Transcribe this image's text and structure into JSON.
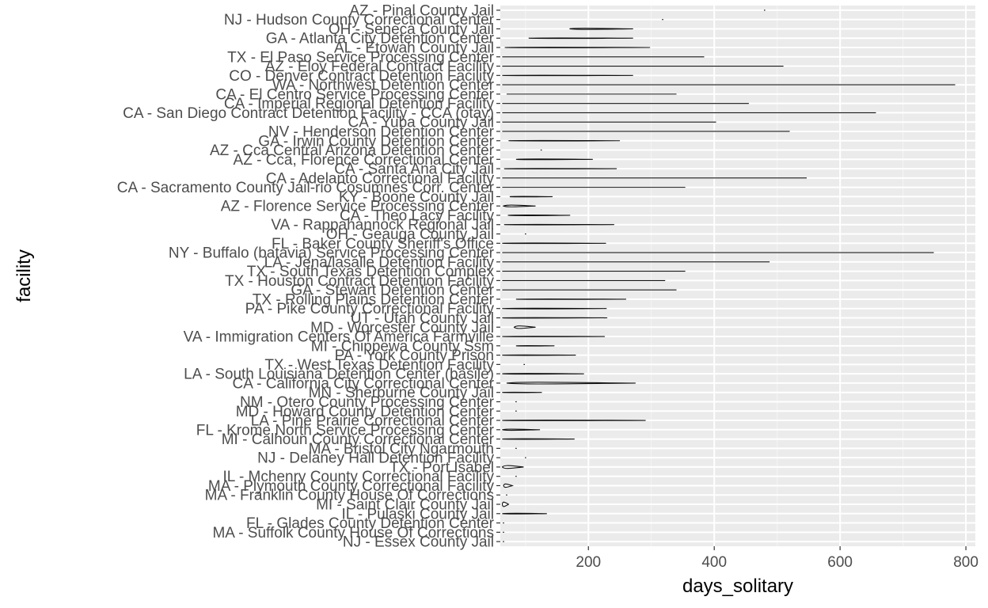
{
  "chart_data": {
    "type": "violin",
    "xlabel": "days_solitary",
    "ylabel": "facility",
    "xlim": [
      60,
      815
    ],
    "xticks": [
      200,
      400,
      600,
      800
    ],
    "grid": true,
    "legend": "none",
    "colors": {
      "panel": "#ebebeb",
      "grid_major": "#ffffff",
      "grid_minor": "#f5f5f5",
      "violin": "#111111",
      "text": "#4d4d4d"
    },
    "facilities": [
      {
        "name": "AZ - Pinal County Jail",
        "min": 480,
        "max": 480,
        "width": 0.05
      },
      {
        "name": "NJ - Hudson County Correctional Center",
        "min": 318,
        "max": 318,
        "width": 0.05
      },
      {
        "name": "OH - Seneca County Jail",
        "min": 170,
        "max": 271,
        "width": 0.2
      },
      {
        "name": "GA - Atlanta City Detention Center",
        "min": 105,
        "max": 271,
        "width": 0.12
      },
      {
        "name": "AL - Etowah County Jail",
        "min": 67,
        "max": 298,
        "width": 0.08
      },
      {
        "name": "TX - El Paso Service Processing Center",
        "min": 63,
        "max": 384,
        "width": 0.08
      },
      {
        "name": "AZ - Eloy Federal Contract Facility",
        "min": 63,
        "max": 510,
        "width": 0.08
      },
      {
        "name": "CO - Denver Contract Detention Facility",
        "min": 63,
        "max": 271,
        "width": 0.08
      },
      {
        "name": "WA - Northwest Detention Center",
        "min": 63,
        "max": 783,
        "width": 0.08
      },
      {
        "name": "CA - El Centro Service Processing Center",
        "min": 70,
        "max": 340,
        "width": 0.08
      },
      {
        "name": "CA - Imperial Regional Detention Facility",
        "min": 63,
        "max": 455,
        "width": 0.08
      },
      {
        "name": "CA - San Diego Contract Detention Facility - CCA (otay)",
        "min": 63,
        "max": 657,
        "width": 0.08
      },
      {
        "name": "CA - Yuba County Jail",
        "min": 63,
        "max": 403,
        "width": 0.1
      },
      {
        "name": "NV - Henderson Detention Center",
        "min": 63,
        "max": 520,
        "width": 0.08
      },
      {
        "name": "GA - Irwin County Detention Center",
        "min": 73,
        "max": 250,
        "width": 0.08
      },
      {
        "name": "AZ - Cca Central Arizona Detention Center",
        "min": 125,
        "max": 125,
        "width": 0.05
      },
      {
        "name": "AZ - Cca, Florence Correctional Center",
        "min": 85,
        "max": 207,
        "width": 0.15
      },
      {
        "name": "CA - Santa Ana City Jail",
        "min": 66,
        "max": 245,
        "width": 0.08
      },
      {
        "name": "CA - Adelanto Correctional Facility",
        "min": 63,
        "max": 547,
        "width": 0.08
      },
      {
        "name": "CA - Sacramento County Jail-rio Cosumnes Corr. Center",
        "min": 63,
        "max": 354,
        "width": 0.08
      },
      {
        "name": "KY - Boone County Jail",
        "min": 75,
        "max": 143,
        "width": 0.1
      },
      {
        "name": "AZ - Florence Service Processing Center",
        "min": 65,
        "max": 116,
        "width": 0.3
      },
      {
        "name": "CA - Theo Lacy Facility",
        "min": 72,
        "max": 171,
        "width": 0.15
      },
      {
        "name": "VA - Rappahannock Regional Jail",
        "min": 66,
        "max": 241,
        "width": 0.08
      },
      {
        "name": "OH - Geauga County Jail",
        "min": 100,
        "max": 100,
        "width": 0.05
      },
      {
        "name": "FL - Baker County Sheriff's Office",
        "min": 63,
        "max": 228,
        "width": 0.1
      },
      {
        "name": "NY - Buffalo (batavia) Service Processing Center",
        "min": 63,
        "max": 749,
        "width": 0.1
      },
      {
        "name": "LA - Jena/lasalle Detention Facility",
        "min": 63,
        "max": 488,
        "width": 0.12
      },
      {
        "name": "TX - South Texas Detention Complex",
        "min": 63,
        "max": 354,
        "width": 0.08
      },
      {
        "name": "TX - Houston Contract Detention Facility",
        "min": 63,
        "max": 322,
        "width": 0.08
      },
      {
        "name": "GA - Stewart Detention Center",
        "min": 63,
        "max": 340,
        "width": 0.08
      },
      {
        "name": "TX - Rolling Plains Detention Center",
        "min": 85,
        "max": 260,
        "width": 0.08
      },
      {
        "name": "PA - Pike County Correctional Facility",
        "min": 63,
        "max": 229,
        "width": 0.15
      },
      {
        "name": "UT - Utah County Jail",
        "min": 63,
        "max": 230,
        "width": 0.08
      },
      {
        "name": "MD - Worcester County Jail",
        "min": 82,
        "max": 116,
        "width": 0.45
      },
      {
        "name": "VA - Immigration Centers Of America Farmville",
        "min": 63,
        "max": 226,
        "width": 0.08
      },
      {
        "name": "MI - Chippewa County Ssm",
        "min": 85,
        "max": 146,
        "width": 0.1
      },
      {
        "name": "PA - York County Prison",
        "min": 63,
        "max": 180,
        "width": 0.1
      },
      {
        "name": "TX - West Texas Detention Facility",
        "min": 98,
        "max": 98,
        "width": 0.05
      },
      {
        "name": "LA - South Louisiana Detention Center (basile)",
        "min": 63,
        "max": 193,
        "width": 0.15
      },
      {
        "name": "CA - California City Correctional Center",
        "min": 70,
        "max": 275,
        "width": 0.3
      },
      {
        "name": "MN - Sherburne County Jail",
        "min": 63,
        "max": 126,
        "width": 0.08
      },
      {
        "name": "NM - Otero County Processing Center",
        "min": 85,
        "max": 85,
        "width": 0.05
      },
      {
        "name": "MD - Howard County Detention Center",
        "min": 85,
        "max": 85,
        "width": 0.05
      },
      {
        "name": "LA - Pine Prairie Correctional Center",
        "min": 63,
        "max": 291,
        "width": 0.12
      },
      {
        "name": "FL - Krome North Service Processing Center",
        "min": 63,
        "max": 123,
        "width": 0.2
      },
      {
        "name": "MI - Calhoun County Correctional Center",
        "min": 63,
        "max": 178,
        "width": 0.12
      },
      {
        "name": "MA - Bristol City Ngarmouth",
        "min": 85,
        "max": 85,
        "width": 0.05
      },
      {
        "name": "NJ - Delaney Hall Detention Facility",
        "min": 100,
        "max": 100,
        "width": 0.05
      },
      {
        "name": "TX - Port Isabel",
        "min": 63,
        "max": 97,
        "width": 0.5
      },
      {
        "name": "IL - Mchenry County Correctional Facility",
        "min": 85,
        "max": 85,
        "width": 0.05
      },
      {
        "name": "MA - Plymouth County Correctional Facility",
        "min": 65,
        "max": 79,
        "width": 0.6
      },
      {
        "name": "MA - Franklin County House Of Corrections",
        "min": 70,
        "max": 70,
        "width": 0.05
      },
      {
        "name": "MI - Saint Clair County Jail",
        "min": 63,
        "max": 73,
        "width": 0.8
      },
      {
        "name": "IL - Pulaski County Jail",
        "min": 63,
        "max": 134,
        "width": 0.15
      },
      {
        "name": "FL - Glades County Detention Center",
        "min": 65,
        "max": 65,
        "width": 0.05
      },
      {
        "name": "MA - Suffolk County House Of Corrections",
        "min": 65,
        "max": 65,
        "width": 0.05
      },
      {
        "name": "NJ - Essex County Jail",
        "min": 65,
        "max": 65,
        "width": 0.05
      }
    ]
  }
}
